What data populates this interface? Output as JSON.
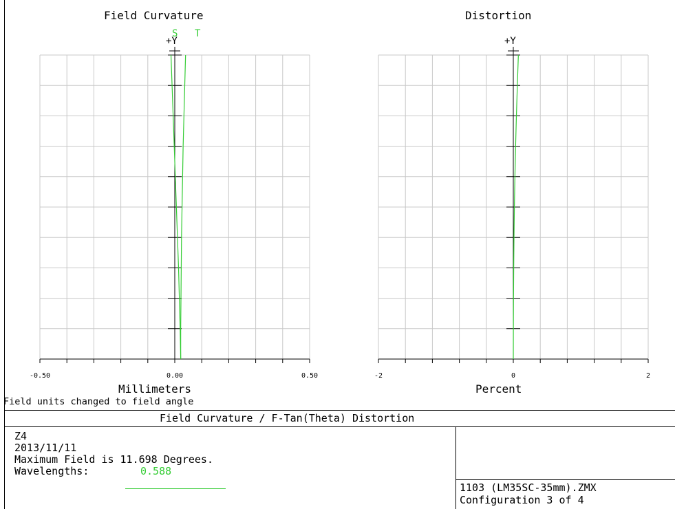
{
  "chart_data": [
    {
      "type": "line",
      "title": "Field Curvature",
      "axis_marker": "+Y",
      "xlabel": "Millimeters",
      "xlim": [
        -0.5,
        0.5
      ],
      "ylim": [
        0,
        11.698
      ],
      "x_tick_labels": [
        "-0.50",
        "0.00",
        "0.50"
      ],
      "x_tick_values": [
        -0.5,
        0.0,
        0.5
      ],
      "grid": true,
      "series": [
        {
          "name": "S",
          "color": "#33cc33",
          "x": [
            0.022,
            0.02,
            0.017,
            0.014,
            0.01,
            0.006,
            0.002,
            -0.002,
            -0.006,
            -0.01,
            -0.014
          ],
          "y": [
            0,
            1.17,
            2.34,
            3.51,
            4.68,
            5.85,
            7.02,
            8.19,
            9.36,
            10.53,
            11.698
          ]
        },
        {
          "name": "T",
          "color": "#33cc33",
          "x": [
            0.022,
            0.022,
            0.023,
            0.024,
            0.025,
            0.027,
            0.029,
            0.031,
            0.034,
            0.037,
            0.04
          ],
          "y": [
            0,
            1.17,
            2.34,
            3.51,
            4.68,
            5.85,
            7.02,
            8.19,
            9.36,
            10.53,
            11.698
          ]
        }
      ]
    },
    {
      "type": "line",
      "title": "Distortion",
      "axis_marker": "+Y",
      "xlabel": "Percent",
      "xlim": [
        -2,
        2
      ],
      "ylim": [
        0,
        11.698
      ],
      "x_tick_labels": [
        "-2",
        "0",
        "2"
      ],
      "x_tick_values": [
        -2,
        0,
        2
      ],
      "grid": true,
      "series": [
        {
          "color": "#33cc33",
          "x": [
            0,
            0.001,
            0.003,
            0.006,
            0.01,
            0.016,
            0.024,
            0.034,
            0.046,
            0.06,
            0.075
          ],
          "y": [
            0,
            1.17,
            2.34,
            3.51,
            4.68,
            5.85,
            7.02,
            8.19,
            9.36,
            10.53,
            11.698
          ]
        }
      ]
    }
  ],
  "note": "Field units changed to field angle",
  "footer": {
    "title": "Field Curvature / F-Tan(Theta) Distortion",
    "lines": [
      "Z4",
      "2013/11/11",
      "Maximum Field is 11.698 Degrees."
    ],
    "wavelength_label": "Wavelengths:",
    "wavelength_value": "0.588",
    "wavelength_color": "#33cc33",
    "file": "1103 (LM35SC-35mm).ZMX",
    "configuration": "Configuration 3 of 4"
  }
}
